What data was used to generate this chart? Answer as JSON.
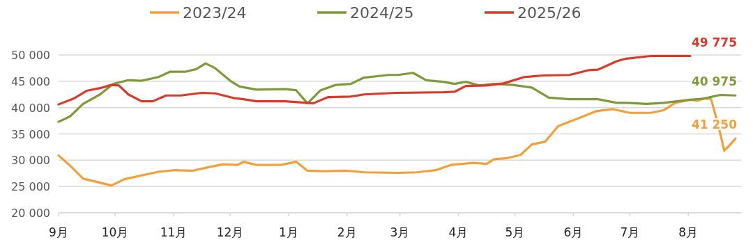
{
  "chart_data": {
    "type": "line",
    "xlim": [
      "2025-09-01",
      "2026-08-29"
    ],
    "xticks": [
      {
        "value": "2025-09-01",
        "label": "9月"
      },
      {
        "value": "2025-10-01",
        "label": "10月"
      },
      {
        "value": "2025-11-01",
        "label": "11月"
      },
      {
        "value": "2025-12-01",
        "label": "12月"
      },
      {
        "value": "2026-01-01",
        "label": "1月"
      },
      {
        "value": "2026-02-01",
        "label": "2月"
      },
      {
        "value": "2026-03-01",
        "label": "3月"
      },
      {
        "value": "2026-04-01",
        "label": "4月"
      },
      {
        "value": "2026-05-01",
        "label": "5月"
      },
      {
        "value": "2026-06-01",
        "label": "6月"
      },
      {
        "value": "2026-07-01",
        "label": "7月"
      },
      {
        "value": "2026-08-01",
        "label": "8月"
      }
    ],
    "ylim": [
      20000,
      50000
    ],
    "yticks": [
      {
        "value": 20000,
        "label": "20 000"
      },
      {
        "value": 25000,
        "label": "25 000"
      },
      {
        "value": 30000,
        "label": "30 000"
      },
      {
        "value": 35000,
        "label": "35 000"
      },
      {
        "value": 40000,
        "label": "40 000"
      },
      {
        "value": 45000,
        "label": "45 000"
      },
      {
        "value": 50000,
        "label": "50 000"
      }
    ],
    "grid": "y",
    "legend": "top",
    "series": [
      {
        "name": "2023/24",
        "color": "#f4a03a",
        "x": [
          "2025-09-01",
          "2025-09-07",
          "2025-09-14",
          "2025-09-21",
          "2025-09-29",
          "2025-10-06",
          "2025-10-15",
          "2025-10-24",
          "2025-11-02",
          "2025-11-11",
          "2025-11-20",
          "2025-11-27",
          "2025-12-05",
          "2025-12-08",
          "2025-12-15",
          "2025-12-28",
          "2026-01-05",
          "2026-01-11",
          "2026-01-20",
          "2026-02-01",
          "2026-02-10",
          "2026-02-28",
          "2026-03-10",
          "2026-03-20",
          "2026-03-28",
          "2026-04-09",
          "2026-04-16",
          "2026-04-20",
          "2026-04-27",
          "2026-05-04",
          "2026-05-10",
          "2026-05-17",
          "2026-05-24",
          "2026-06-04",
          "2026-06-13",
          "2026-06-22",
          "2026-07-01",
          "2026-07-12",
          "2026-07-19",
          "2026-07-25",
          "2026-08-02",
          "2026-08-06",
          "2026-08-09",
          "2026-08-13",
          "2026-08-17",
          "2026-08-20",
          "2026-08-22",
          "2026-08-26"
        ],
        "values": [
          30900,
          29000,
          26500,
          25900,
          25200,
          26400,
          27100,
          27800,
          28100,
          28000,
          28700,
          29200,
          29100,
          29700,
          29100,
          29100,
          29700,
          28000,
          27900,
          28000,
          27700,
          27600,
          27700,
          28100,
          29100,
          29500,
          29300,
          30200,
          30400,
          31000,
          33000,
          33500,
          36500,
          38000,
          39300,
          39700,
          39000,
          39000,
          39500,
          40900,
          41500,
          41300,
          41700,
          41700,
          36500,
          31800,
          32500,
          34100
        ]
      },
      {
        "name": "2024/25",
        "color": "#7f9a3a",
        "x": [
          "2025-09-01",
          "2025-09-07",
          "2025-09-14",
          "2025-09-23",
          "2025-09-30",
          "2025-10-08",
          "2025-10-15",
          "2025-10-24",
          "2025-10-30",
          "2025-11-07",
          "2025-11-13",
          "2025-11-18",
          "2025-11-23",
          "2025-12-01",
          "2025-12-06",
          "2025-12-15",
          "2025-12-30",
          "2026-01-05",
          "2026-01-11",
          "2026-01-18",
          "2026-01-26",
          "2026-02-03",
          "2026-02-10",
          "2026-02-23",
          "2026-02-28",
          "2026-03-08",
          "2026-03-15",
          "2026-03-24",
          "2026-03-30",
          "2026-04-05",
          "2026-04-12",
          "2026-04-20",
          "2026-04-30",
          "2026-05-10",
          "2026-05-19",
          "2026-05-30",
          "2026-06-14",
          "2026-06-24",
          "2026-06-29",
          "2026-07-10",
          "2026-07-19",
          "2026-08-02",
          "2026-08-09",
          "2026-08-18",
          "2026-08-26"
        ],
        "values": [
          37300,
          38300,
          40700,
          42500,
          44500,
          45200,
          45100,
          45800,
          46800,
          46800,
          47300,
          48400,
          47500,
          45100,
          44000,
          43400,
          43500,
          43300,
          40800,
          43300,
          44300,
          44500,
          45700,
          46200,
          46200,
          46600,
          45200,
          44900,
          44500,
          44900,
          44200,
          44500,
          44300,
          43800,
          41900,
          41600,
          41600,
          40900,
          40900,
          40700,
          40900,
          41500,
          41700,
          42400,
          42300
        ]
      },
      {
        "name": "2025/26",
        "color": "#d93a2a",
        "x": [
          "2025-09-01",
          "2025-09-09",
          "2025-09-16",
          "2025-09-23",
          "2025-09-29",
          "2025-10-03",
          "2025-10-08",
          "2025-10-15",
          "2025-10-21",
          "2025-10-28",
          "2025-11-05",
          "2025-11-16",
          "2025-11-23",
          "2025-12-03",
          "2025-12-08",
          "2025-12-15",
          "2025-12-30",
          "2026-01-07",
          "2026-01-14",
          "2026-01-22",
          "2026-02-03",
          "2026-02-10",
          "2026-02-27",
          "2026-03-24",
          "2026-03-30",
          "2026-04-05",
          "2026-04-16",
          "2026-04-25",
          "2026-05-06",
          "2026-05-16",
          "2026-05-30",
          "2026-06-09",
          "2026-06-14",
          "2026-06-24",
          "2026-06-29",
          "2026-07-12",
          "2026-08-02"
        ],
        "values": [
          40600,
          41700,
          43200,
          43700,
          44300,
          44200,
          42500,
          41200,
          41200,
          42300,
          42300,
          42800,
          42700,
          41800,
          41600,
          41200,
          41200,
          41000,
          40800,
          42000,
          42100,
          42500,
          42800,
          42900,
          43000,
          44100,
          44200,
          44600,
          45800,
          46100,
          46200,
          47100,
          47200,
          48800,
          49300,
          49800,
          49800
        ]
      }
    ],
    "annotations": [
      "41 250",
      "40 975",
      "49 775"
    ]
  }
}
